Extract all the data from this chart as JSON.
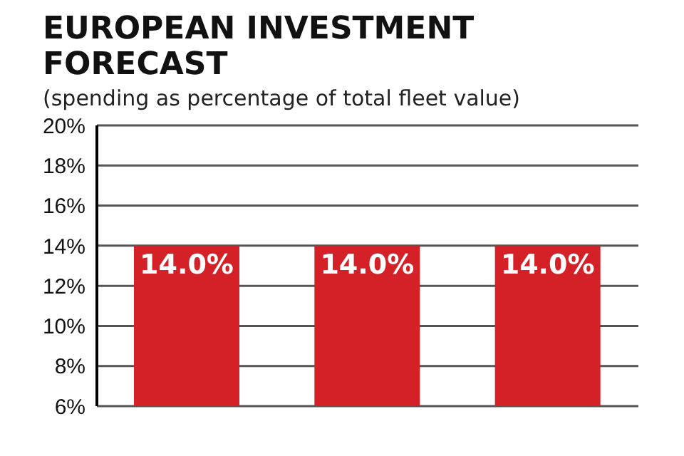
{
  "chart_data": {
    "type": "bar",
    "title": "EUROPEAN INVESTMENT FORECAST",
    "subtitle": "(spending as percentage of total fleet value)",
    "categories": [
      null,
      null,
      null
    ],
    "values": [
      14,
      14,
      14
    ],
    "value_labels": [
      "14.0%",
      "14.0%",
      "14.0%"
    ],
    "color": "#d42027",
    "ylim": [
      6,
      20
    ],
    "yticks": [
      {
        "value": 6,
        "label": "6%"
      },
      {
        "value": 8,
        "label": "8%"
      },
      {
        "value": 10,
        "label": "10%"
      },
      {
        "value": 12,
        "label": "12%"
      },
      {
        "value": 14,
        "label": "14%"
      },
      {
        "value": 16,
        "label": "16%"
      },
      {
        "value": 18,
        "label": "18%"
      },
      {
        "value": 20,
        "label": "20%"
      }
    ],
    "grid": "y",
    "tick_labels": "y"
  }
}
